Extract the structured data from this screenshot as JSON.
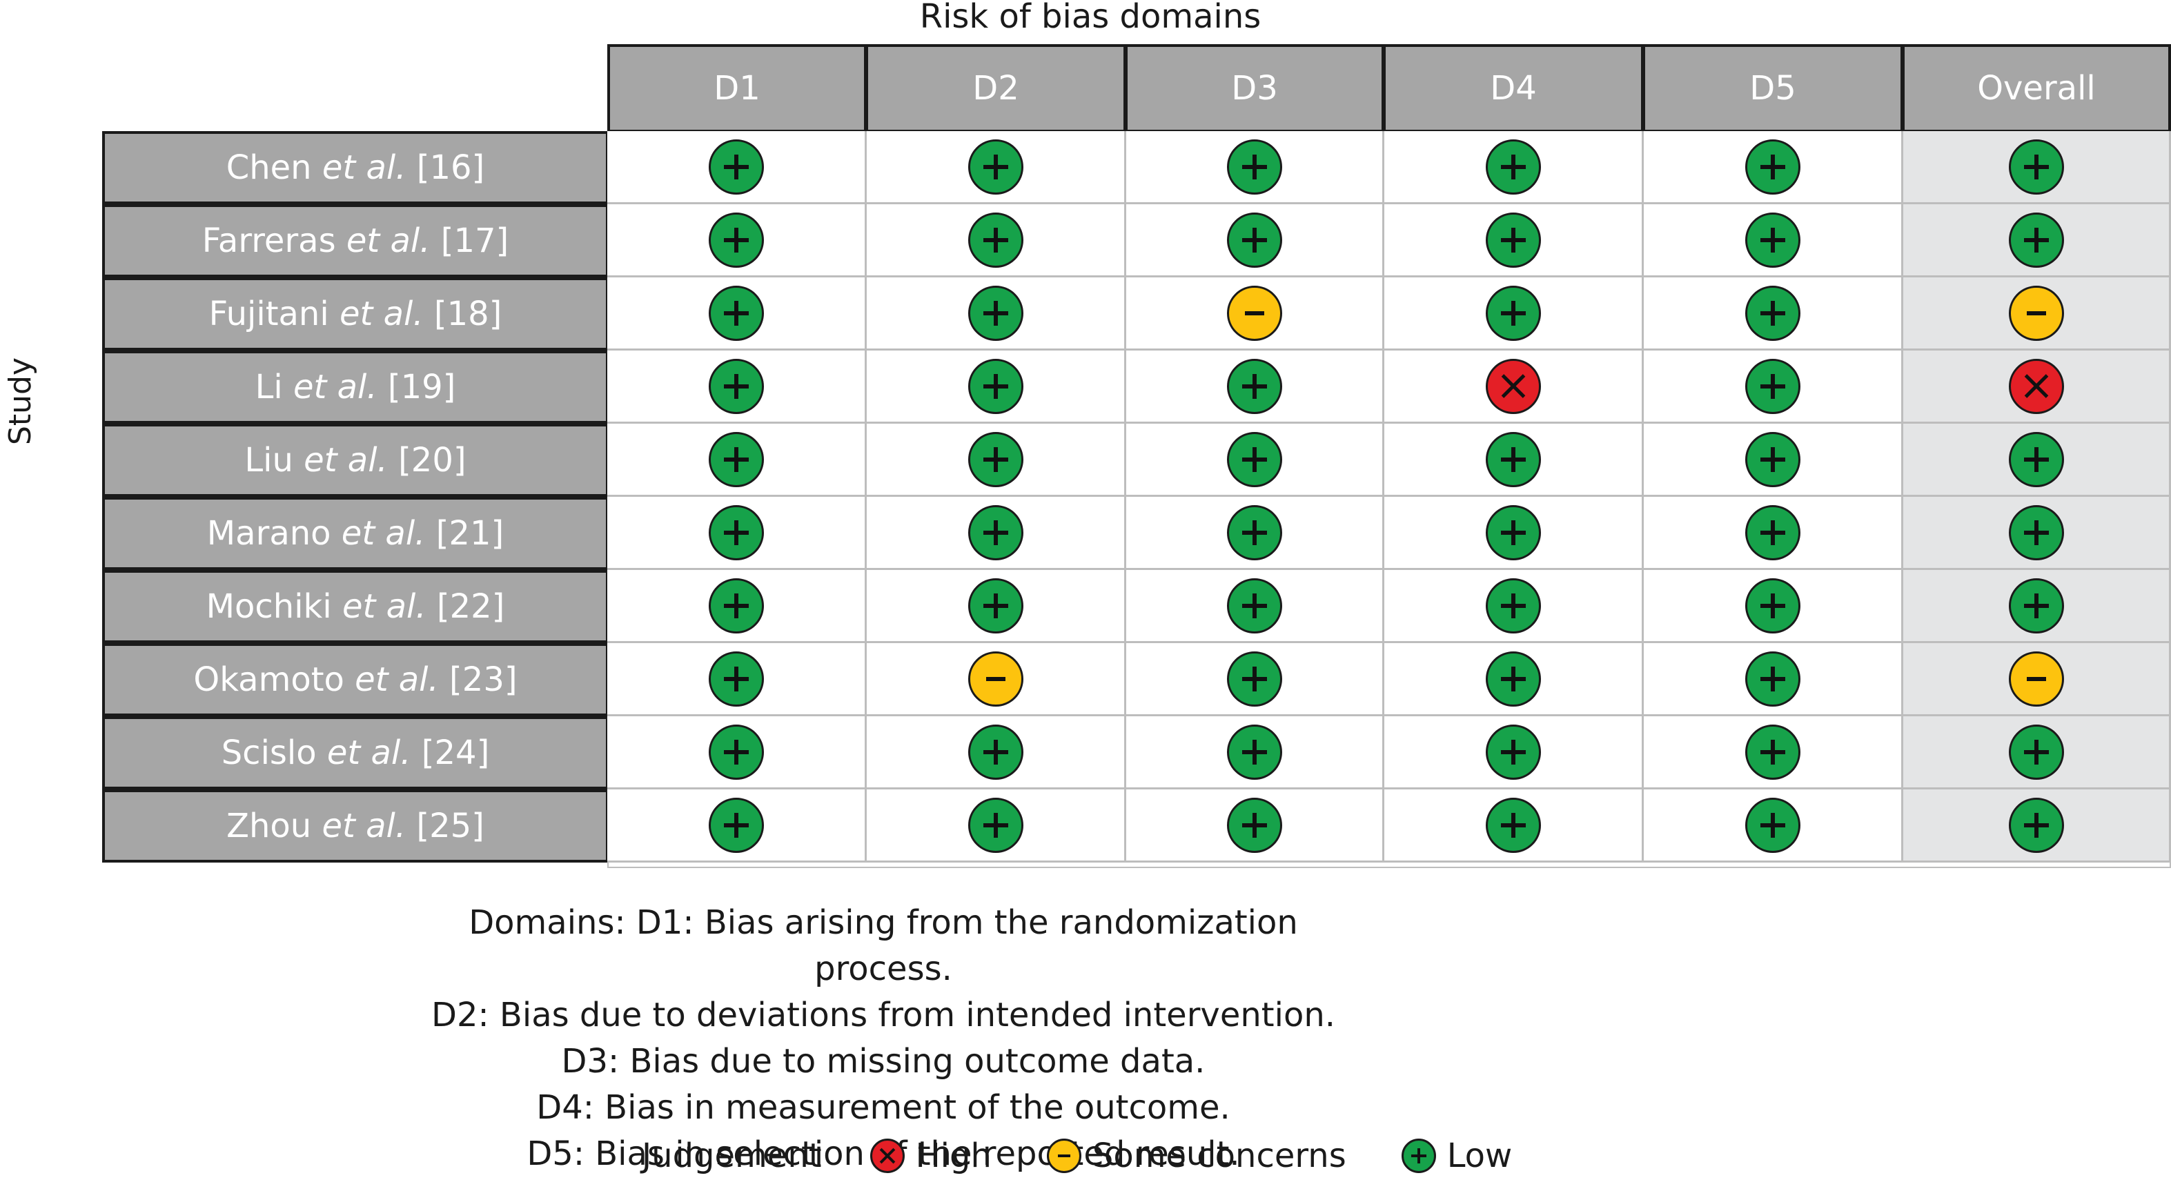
{
  "title": "Risk of bias domains",
  "y_axis_label": "Study",
  "domains": [
    "D1",
    "D2",
    "D3",
    "D4",
    "D5",
    "Overall"
  ],
  "studies": [
    {
      "name": "Chen",
      "etal": "et al.",
      "ref": "[16]",
      "judgements": [
        "low",
        "low",
        "low",
        "low",
        "low",
        "low"
      ]
    },
    {
      "name": "Farreras",
      "etal": "et al.",
      "ref": "[17]",
      "judgements": [
        "low",
        "low",
        "low",
        "low",
        "low",
        "low"
      ]
    },
    {
      "name": "Fujitani",
      "etal": "et al.",
      "ref": "[18]",
      "judgements": [
        "low",
        "low",
        "some",
        "low",
        "low",
        "some"
      ]
    },
    {
      "name": "Li",
      "etal": "et al.",
      "ref": "[19]",
      "judgements": [
        "low",
        "low",
        "low",
        "high",
        "low",
        "high"
      ]
    },
    {
      "name": "Liu",
      "etal": "et al.",
      "ref": "[20]",
      "judgements": [
        "low",
        "low",
        "low",
        "low",
        "low",
        "low"
      ]
    },
    {
      "name": "Marano",
      "etal": "et al.",
      "ref": "[21]",
      "judgements": [
        "low",
        "low",
        "low",
        "low",
        "low",
        "low"
      ]
    },
    {
      "name": "Mochiki",
      "etal": "et al.",
      "ref": "[22]",
      "judgements": [
        "low",
        "low",
        "low",
        "low",
        "low",
        "low"
      ]
    },
    {
      "name": "Okamoto",
      "etal": "et al.",
      "ref": "[23]",
      "judgements": [
        "low",
        "some",
        "low",
        "low",
        "low",
        "some"
      ]
    },
    {
      "name": "Scislo",
      "etal": "et al.",
      "ref": "[24]",
      "judgements": [
        "low",
        "low",
        "low",
        "low",
        "low",
        "low"
      ]
    },
    {
      "name": "Zhou",
      "etal": "et al.",
      "ref": "[25]",
      "judgements": [
        "low",
        "low",
        "low",
        "low",
        "low",
        "low"
      ]
    }
  ],
  "notes": [
    "Domains: D1: Bias arising from the randomization process.",
    "D2: Bias due to deviations from intended intervention.",
    "D3: Bias due to missing outcome data.",
    "D4: Bias in measurement of the outcome.",
    "D5: Bias in selection of the reported result."
  ],
  "legend": {
    "title": "Judgement",
    "items": [
      {
        "key": "high",
        "label": "High",
        "color": "#e41f26",
        "icon": "x-icon"
      },
      {
        "key": "some",
        "label": "Some concerns",
        "color": "#fdc30e",
        "icon": "minus-icon"
      },
      {
        "key": "low",
        "label": "Low",
        "color": "#16a24a",
        "icon": "plus-icon"
      }
    ]
  },
  "colors": {
    "header_fill": "#a6a6a6",
    "overall_column_fill": "#e4e5e6",
    "grid_line": "#bdbdbd"
  }
}
